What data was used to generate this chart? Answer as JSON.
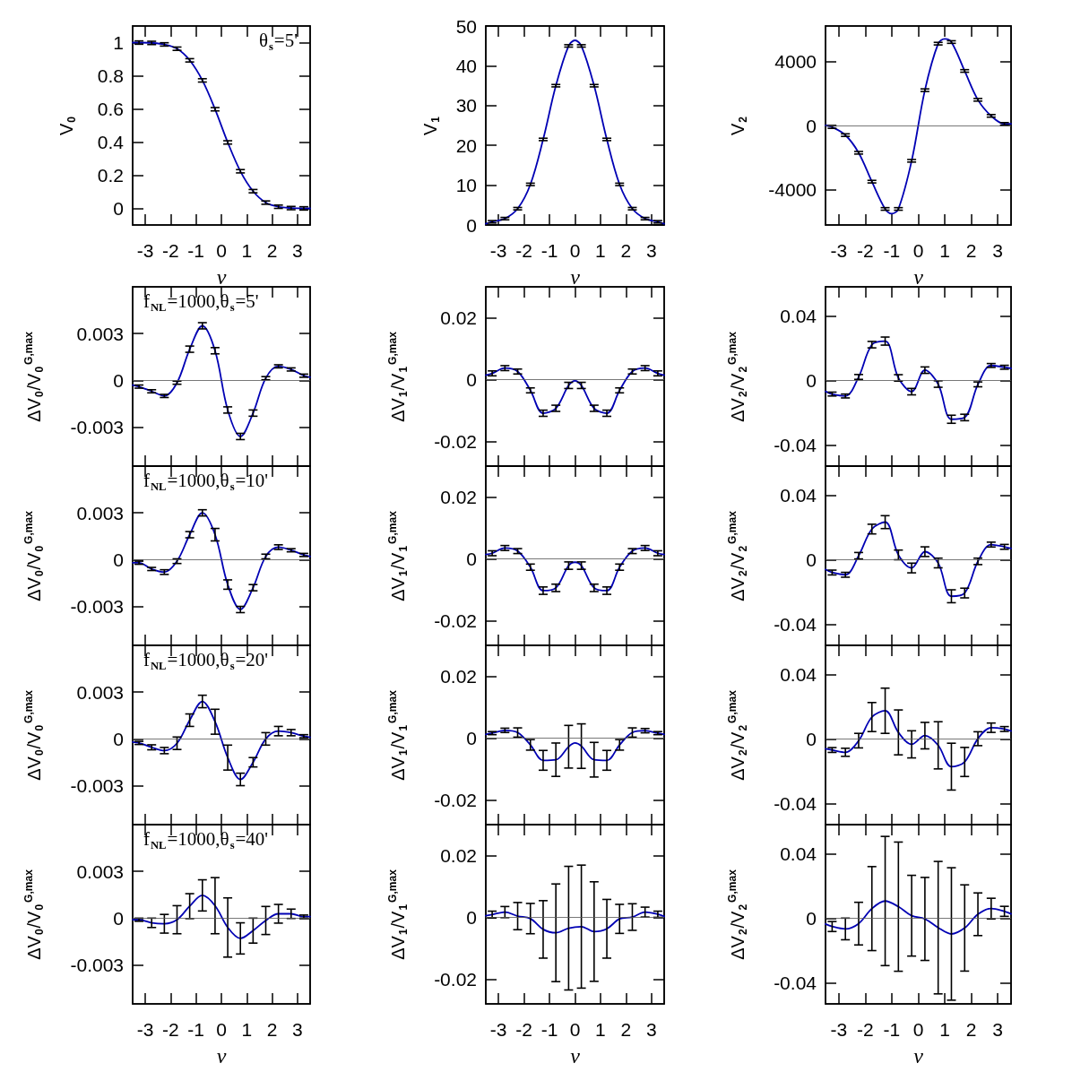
{
  "chart_data": [
    {
      "type": "line",
      "xlabel": "ν",
      "ylabel": "V$_{0}$",
      "annotations": [
        "θ$_{s}$=5'"
      ],
      "xlim": [
        -3.5,
        3.5
      ],
      "xticks": [
        -3,
        -2,
        -1,
        0,
        1,
        2,
        3
      ],
      "ylim": [
        -0.1,
        1.1
      ],
      "yticks": [
        0,
        0.2,
        0.4,
        0.6,
        0.8,
        1
      ],
      "marker": "none",
      "series": [
        {
          "color": "#0000b4",
          "x": [
            -3.5,
            -3.25,
            -2.75,
            -2.25,
            -1.75,
            -1.25,
            -0.75,
            -0.25,
            0.25,
            0.75,
            1.25,
            1.75,
            2.25,
            2.75,
            3.25,
            3.5
          ],
          "values": [
            1,
            1,
            0.998,
            0.989,
            0.963,
            0.893,
            0.772,
            0.598,
            0.398,
            0.224,
            0.104,
            0.035,
            0.01,
            0.002,
            0,
            0
          ],
          "errors": [
            null,
            0.01,
            0.01,
            0.01,
            0.01,
            0.01,
            0.01,
            0.01,
            0.01,
            0.01,
            0.01,
            0.01,
            0.01,
            0.01,
            0.01,
            null
          ]
        }
      ]
    },
    {
      "type": "line",
      "xlabel": "ν",
      "ylabel": "V$_{1}$",
      "xlim": [
        -3.5,
        3.5
      ],
      "xticks": [
        -3,
        -2,
        -1,
        0,
        1,
        2,
        3
      ],
      "ylim": [
        0,
        50
      ],
      "yticks": [
        0,
        10,
        20,
        30,
        40,
        50
      ],
      "marker": "none",
      "series": [
        {
          "color": "#0000b4",
          "x": [
            -3.5,
            -3.25,
            -2.75,
            -2.25,
            -1.75,
            -1.25,
            -0.75,
            -0.25,
            0,
            0.25,
            0.75,
            1.25,
            1.75,
            2.25,
            2.75,
            3.25,
            3.5
          ],
          "values": [
            0.3,
            0.8,
            1.6,
            4.1,
            10.2,
            21.5,
            35,
            45,
            46.4,
            45,
            35,
            21.5,
            10.2,
            4.1,
            1.6,
            0.8,
            0.3
          ],
          "errors": [
            null,
            0.3,
            0.3,
            0.3,
            0.3,
            0.3,
            0.3,
            0.3,
            null,
            0.3,
            0.3,
            0.3,
            0.3,
            0.3,
            0.3,
            0.3,
            null
          ]
        }
      ]
    },
    {
      "type": "line",
      "xlabel": "ν",
      "ylabel": "V$_{2}$",
      "xlim": [
        -3.5,
        3.5
      ],
      "xticks": [
        -3,
        -2,
        -1,
        0,
        1,
        2,
        3
      ],
      "ylim": [
        -6200,
        6200
      ],
      "yticks": [
        -4000,
        0,
        4000
      ],
      "marker": "none",
      "ref_lines": [
        {
          "axis": "y",
          "value": 0
        }
      ],
      "series": [
        {
          "color": "#0000b4",
          "x": [
            -3.5,
            -3.25,
            -2.75,
            -2.25,
            -1.75,
            -1.25,
            -1,
            -0.75,
            -0.25,
            0.25,
            0.75,
            1,
            1.25,
            1.75,
            2.25,
            2.75,
            3.25,
            3.5
          ],
          "values": [
            0,
            -100,
            -600,
            -1700,
            -3500,
            -5200,
            -5500,
            -5200,
            -2200,
            2200,
            5100,
            5400,
            5200,
            3400,
            1600,
            600,
            100,
            100
          ],
          "errors": [
            null,
            80,
            80,
            80,
            80,
            80,
            null,
            80,
            80,
            80,
            80,
            null,
            80,
            80,
            80,
            80,
            80,
            null
          ]
        }
      ]
    },
    {
      "type": "line",
      "ylabel": "ΔV$_{0}$/V$_{0}$$^{G,max}$",
      "annotations": [
        "f$_{NL}$=1000,θ$_{s}$=5'"
      ],
      "xlim": [
        -3.5,
        3.5
      ],
      "xticks": [
        -3,
        -2,
        -1,
        0,
        1,
        2,
        3
      ],
      "ylim": [
        -0.0055,
        0.006
      ],
      "yticks": [
        -0.003,
        0,
        0.003
      ],
      "tick_labels": "y",
      "marker": "none",
      "ref_lines": [
        {
          "axis": "y",
          "value": 0
        }
      ],
      "series": [
        {
          "color": "#0000b4",
          "x": [
            -3.5,
            -3.25,
            -2.75,
            -2.25,
            -1.75,
            -1.25,
            -0.75,
            -0.25,
            0.25,
            0.75,
            1.25,
            1.75,
            2.25,
            2.75,
            3.25,
            3.5
          ],
          "values": [
            -0.0003,
            -0.0004,
            -0.0007,
            -0.001,
            -0.00015,
            0.002,
            0.0035,
            0.0019,
            -0.0019,
            -0.0036,
            -0.0021,
            0.00014,
            0.0009,
            0.0007,
            0.0003,
            0.0002
          ],
          "errors": [
            null,
            0.0001,
            0.0001,
            0.0001,
            0.0001,
            0.0002,
            0.0002,
            0.0002,
            0.0002,
            0.0002,
            0.0002,
            0.0001,
            0.0001,
            0.0001,
            0.0001,
            null
          ]
        }
      ]
    },
    {
      "type": "line",
      "ylabel": "ΔV$_{1}$/V$_{1}$$^{G,max}$",
      "xlim": [
        -3.5,
        3.5
      ],
      "xticks": [
        -3,
        -2,
        -1,
        0,
        1,
        2,
        3
      ],
      "ylim": [
        -0.028,
        0.03
      ],
      "yticks": [
        -0.02,
        0,
        0.02
      ],
      "tick_labels": "y",
      "marker": "none",
      "ref_lines": [
        {
          "axis": "y",
          "value": 0
        }
      ],
      "series": [
        {
          "color": "#0000b4",
          "x": [
            -3.5,
            -3.25,
            -2.75,
            -2.25,
            -1.75,
            -1.25,
            -0.75,
            -0.25,
            0,
            0.25,
            0.75,
            1.25,
            1.75,
            2.25,
            2.75,
            3.25,
            3.5
          ],
          "values": [
            0.0014,
            0.002,
            0.0037,
            0.0026,
            -0.0035,
            -0.0109,
            -0.0093,
            -0.0019,
            -0.0004,
            -0.0019,
            -0.0093,
            -0.0109,
            -0.0035,
            0.0026,
            0.0037,
            0.002,
            0.0014
          ],
          "errors": [
            null,
            0.0008,
            0.0008,
            0.0008,
            0.0008,
            0.001,
            0.001,
            0.001,
            null,
            0.001,
            0.001,
            0.001,
            0.0008,
            0.0008,
            0.0008,
            0.0008,
            null
          ]
        }
      ]
    },
    {
      "type": "line",
      "ylabel": "ΔV$_{2}$/V$_{2}$$^{G,max}$",
      "xlim": [
        -3.5,
        3.5
      ],
      "xticks": [
        -3,
        -2,
        -1,
        0,
        1,
        2,
        3
      ],
      "ylim": [
        -0.053,
        0.058
      ],
      "yticks": [
        -0.04,
        0,
        0.04
      ],
      "tick_labels": "y",
      "marker": "none",
      "ref_lines": [
        {
          "axis": "y",
          "value": 0
        }
      ],
      "series": [
        {
          "color": "#0000b4",
          "x": [
            -3.5,
            -3.25,
            -2.75,
            -2.25,
            -1.75,
            -1.25,
            -0.75,
            -0.25,
            0.25,
            0.75,
            1.25,
            1.75,
            2.25,
            2.75,
            3.25,
            3.5
          ],
          "values": [
            -0.0067,
            -0.0084,
            -0.0096,
            0.0022,
            0.0222,
            0.0244,
            0.0016,
            -0.0069,
            0.0064,
            -0.0022,
            -0.024,
            -0.0229,
            -0.0024,
            0.0093,
            0.0082,
            0.0075
          ],
          "errors": [
            null,
            0.0012,
            0.0012,
            0.0015,
            0.002,
            0.0025,
            0.002,
            0.002,
            0.002,
            0.002,
            0.0025,
            0.002,
            0.0015,
            0.0012,
            0.0012,
            null
          ]
        }
      ]
    },
    {
      "type": "line",
      "ylabel": "ΔV$_{0}$/V$_{0}$$^{G,max}$",
      "annotations": [
        "f$_{NL}$=1000,θ$_{s}$=10'"
      ],
      "xlim": [
        -3.5,
        3.5
      ],
      "xticks": [
        -3,
        -2,
        -1,
        0,
        1,
        2,
        3
      ],
      "ylim": [
        -0.0055,
        0.006
      ],
      "yticks": [
        -0.003,
        0,
        0.003
      ],
      "tick_labels": "y",
      "marker": "none",
      "ref_lines": [
        {
          "axis": "y",
          "value": 0
        }
      ],
      "series": [
        {
          "color": "#0000b4",
          "x": [
            -3.5,
            -3.25,
            -2.75,
            -2.25,
            -1.75,
            -1.25,
            -0.75,
            -0.25,
            0.25,
            0.75,
            1.25,
            1.75,
            2.25,
            2.75,
            3.25,
            3.5
          ],
          "values": [
            -0.0002,
            -0.0002,
            -0.0006,
            -0.0008,
            -0.0001,
            0.0016,
            0.003,
            0.0016,
            -0.0016,
            -0.0032,
            -0.0018,
            0.0002,
            0.0008,
            0.0006,
            0.0003,
            0.0002
          ],
          "errors": [
            null,
            0.0001,
            0.0001,
            0.00015,
            0.00015,
            0.0002,
            0.0002,
            0.0004,
            0.0003,
            0.0002,
            0.0002,
            0.00015,
            0.00015,
            0.0001,
            0.0001,
            null
          ]
        }
      ]
    },
    {
      "type": "line",
      "ylabel": "ΔV$_{1}$/V$_{1}$$^{G,max}$",
      "xlim": [
        -3.5,
        3.5
      ],
      "xticks": [
        -3,
        -2,
        -1,
        0,
        1,
        2,
        3
      ],
      "ylim": [
        -0.028,
        0.03
      ],
      "yticks": [
        -0.02,
        0,
        0.02
      ],
      "tick_labels": "y",
      "marker": "none",
      "ref_lines": [
        {
          "axis": "y",
          "value": 0
        }
      ],
      "series": [
        {
          "color": "#0000b4",
          "x": [
            -3.5,
            -3.25,
            -2.75,
            -2.25,
            -1.75,
            -1.25,
            -0.75,
            -0.25,
            0,
            0.25,
            0.75,
            1.25,
            1.75,
            2.25,
            2.75,
            3.25,
            3.5
          ],
          "values": [
            0.0014,
            0.0018,
            0.0035,
            0.0025,
            -0.0027,
            -0.0103,
            -0.0094,
            -0.0022,
            -0.0011,
            -0.0022,
            -0.0094,
            -0.0103,
            -0.0027,
            0.0025,
            0.0035,
            0.0018,
            0.0014
          ],
          "errors": [
            null,
            0.0008,
            0.0008,
            0.0008,
            0.001,
            0.0012,
            0.0012,
            0.0012,
            null,
            0.0012,
            0.0012,
            0.0012,
            0.001,
            0.0008,
            0.0008,
            0.0008,
            null
          ]
        }
      ]
    },
    {
      "type": "line",
      "ylabel": "ΔV$_{2}$/V$_{2}$$^{G,max}$",
      "xlim": [
        -3.5,
        3.5
      ],
      "xticks": [
        -3,
        -2,
        -1,
        0,
        1,
        2,
        3
      ],
      "ylim": [
        -0.053,
        0.058
      ],
      "yticks": [
        -0.04,
        0,
        0.04
      ],
      "tick_labels": "y",
      "marker": "none",
      "ref_lines": [
        {
          "axis": "y",
          "value": 0
        }
      ],
      "series": [
        {
          "color": "#0000b4",
          "x": [
            -3.5,
            -3.25,
            -2.75,
            -2.25,
            -1.75,
            -1.25,
            -0.75,
            -0.25,
            0.25,
            0.75,
            1.25,
            1.75,
            2.25,
            2.75,
            3.25,
            3.5
          ],
          "values": [
            -0.006,
            -0.0079,
            -0.0093,
            0.0025,
            0.019,
            0.0233,
            0.003,
            -0.0051,
            0.005,
            -0.002,
            -0.0226,
            -0.0206,
            -0.001,
            0.0094,
            0.008,
            0.007
          ],
          "errors": [
            null,
            0.0015,
            0.0015,
            0.002,
            0.003,
            0.004,
            0.003,
            0.003,
            0.003,
            0.003,
            0.004,
            0.003,
            0.002,
            0.0015,
            0.0015,
            null
          ]
        }
      ]
    },
    {
      "type": "line",
      "ylabel": "ΔV$_{0}$/V$_{0}$$^{G,max}$",
      "annotations": [
        "f$_{NL}$=1000,θ$_{s}$=20'"
      ],
      "xlim": [
        -3.5,
        3.5
      ],
      "xticks": [
        -3,
        -2,
        -1,
        0,
        1,
        2,
        3
      ],
      "ylim": [
        -0.0055,
        0.006
      ],
      "yticks": [
        -0.003,
        0,
        0.003
      ],
      "tick_labels": "y",
      "marker": "none",
      "ref_lines": [
        {
          "axis": "y",
          "value": 0
        }
      ],
      "series": [
        {
          "color": "#0000b4",
          "x": [
            -3.5,
            -3.25,
            -2.75,
            -2.25,
            -1.75,
            -1.25,
            -0.75,
            -0.25,
            0.25,
            0.75,
            1.25,
            1.75,
            2.25,
            2.75,
            3.25,
            3.5
          ],
          "values": [
            -0.0002,
            -0.00026,
            -0.00054,
            -0.00075,
            -0.00028,
            0.0012,
            0.0024,
            0.0011,
            -0.0012,
            -0.0026,
            -0.0015,
            0,
            0.0005,
            0.0004,
            0.00017,
            0.0001
          ],
          "errors": [
            null,
            0.0001,
            0.00016,
            0.0002,
            0.0004,
            0.0004,
            0.0004,
            0.0008,
            0.0008,
            0.0004,
            0.0003,
            0.0004,
            0.0003,
            0.0002,
            0.0001,
            null
          ]
        }
      ]
    },
    {
      "type": "line",
      "ylabel": "ΔV$_{1}$/V$_{1}$$^{G,max}$",
      "xlim": [
        -3.5,
        3.5
      ],
      "xticks": [
        -3,
        -2,
        -1,
        0,
        1,
        2,
        3
      ],
      "ylim": [
        -0.028,
        0.03
      ],
      "yticks": [
        -0.02,
        0,
        0.02
      ],
      "tick_labels": "y",
      "marker": "none",
      "ref_lines": [
        {
          "axis": "y",
          "value": 0
        }
      ],
      "series": [
        {
          "color": "#0000b4",
          "x": [
            -3.5,
            -3.25,
            -2.75,
            -2.25,
            -1.75,
            -1.25,
            -0.75,
            -0.25,
            0,
            0.25,
            0.75,
            1.25,
            1.75,
            2.25,
            2.75,
            3.25,
            3.5
          ],
          "values": [
            0.0012,
            0.0016,
            0.0025,
            0.0018,
            -0.0022,
            -0.0072,
            -0.007,
            -0.0028,
            -0.0016,
            -0.0026,
            -0.007,
            -0.0072,
            -0.0022,
            0.0018,
            0.0024,
            0.0016,
            0.0012
          ],
          "errors": [
            null,
            0.0005,
            0.0007,
            0.0015,
            0.0017,
            0.0032,
            0.0054,
            0.0069,
            null,
            0.0072,
            0.0056,
            0.0032,
            0.0017,
            0.0015,
            0.0007,
            0.0005,
            null
          ]
        }
      ]
    },
    {
      "type": "line",
      "ylabel": "ΔV$_{2}$/V$_{2}$$^{G,max}$",
      "xlim": [
        -3.5,
        3.5
      ],
      "xticks": [
        -3,
        -2,
        -1,
        0,
        1,
        2,
        3
      ],
      "ylim": [
        -0.053,
        0.058
      ],
      "yticks": [
        -0.04,
        0,
        0.04
      ],
      "tick_labels": "y",
      "marker": "none",
      "ref_lines": [
        {
          "axis": "y",
          "value": 0
        }
      ],
      "series": [
        {
          "color": "#0000b4",
          "x": [
            -3.5,
            -3.25,
            -2.75,
            -2.25,
            -1.75,
            -1.25,
            -0.75,
            -0.25,
            0.25,
            0.75,
            1.25,
            1.75,
            2.25,
            2.75,
            3.25,
            3.5
          ],
          "values": [
            -0.006,
            -0.0068,
            -0.0082,
            -0.001,
            0.0136,
            0.0175,
            0.0041,
            -0.0033,
            0.0021,
            -0.0039,
            -0.0171,
            -0.0142,
            0.0002,
            0.007,
            0.0062,
            0.005
          ],
          "errors": [
            null,
            0.0015,
            0.0025,
            0.0045,
            0.009,
            0.014,
            0.0139,
            0.0084,
            0.0082,
            0.0146,
            0.0145,
            0.009,
            0.0043,
            0.0029,
            0.0015,
            null
          ]
        }
      ]
    },
    {
      "type": "line",
      "xlabel": "ν",
      "ylabel": "ΔV$_{0}$/V$_{0}$$^{G,max}$",
      "annotations": [
        "f$_{NL}$=1000,θ$_{s}$=40'"
      ],
      "xlim": [
        -3.5,
        3.5
      ],
      "xticks": [
        -3,
        -2,
        -1,
        0,
        1,
        2,
        3
      ],
      "ylim": [
        -0.0055,
        0.006
      ],
      "yticks": [
        -0.003,
        0,
        0.003
      ],
      "marker": "none",
      "ref_lines": [
        {
          "axis": "y",
          "value": 0
        }
      ],
      "series": [
        {
          "color": "#0000b4",
          "x": [
            -3.5,
            -3.25,
            -2.75,
            -2.25,
            -1.75,
            -1.25,
            -0.75,
            -0.25,
            0.25,
            0.75,
            1.25,
            1.75,
            2.25,
            2.75,
            3.25,
            3.5
          ],
          "values": [
            -0.0001,
            -0.0001,
            -0.0003,
            -0.00036,
            -0.0001,
            0.00077,
            0.00146,
            0.0008,
            -0.0006,
            -0.0013,
            -0.0008,
            -0.00015,
            0.00028,
            0.00028,
            0.0001,
            0.0001
          ],
          "errors": [
            null,
            0.0001,
            0.0003,
            0.0006,
            0.0009,
            0.0008,
            0.001,
            0.0018,
            0.0019,
            0.001,
            0.0008,
            0.0009,
            0.0006,
            0.0003,
            0.0001,
            null
          ]
        }
      ]
    },
    {
      "type": "line",
      "xlabel": "ν",
      "ylabel": "ΔV$_{1}$/V$_{1}$$^{G,max}$",
      "xlim": [
        -3.5,
        3.5
      ],
      "xticks": [
        -3,
        -2,
        -1,
        0,
        1,
        2,
        3
      ],
      "ylim": [
        -0.028,
        0.03
      ],
      "yticks": [
        -0.02,
        0,
        0.02
      ],
      "marker": "none",
      "ref_lines": [
        {
          "axis": "y",
          "value": 0
        }
      ],
      "series": [
        {
          "color": "#0000b4",
          "x": [
            -3.5,
            -3.25,
            -2.75,
            -2.25,
            -1.75,
            -1.25,
            -0.75,
            -0.25,
            0.25,
            0.75,
            1.25,
            1.75,
            2.25,
            2.75,
            3.25,
            3.5
          ],
          "values": [
            0.0005,
            0.0009,
            0.0017,
            0.0004,
            -0.0004,
            -0.0039,
            -0.005,
            -0.0035,
            -0.003,
            -0.0046,
            -0.0037,
            -0.0005,
            0.0001,
            0.0017,
            0.001,
            0.0003
          ],
          "errors": [
            null,
            0.0011,
            0.0018,
            0.0044,
            0.0049,
            0.0093,
            0.0158,
            0.02,
            0.0199,
            0.0161,
            0.0095,
            0.0047,
            0.0043,
            0.0016,
            0.001,
            null
          ]
        }
      ]
    },
    {
      "type": "line",
      "xlabel": "ν",
      "ylabel": "ΔV$_{2}$/V$_{2}$$^{G,max}$",
      "xlim": [
        -3.5,
        3.5
      ],
      "xticks": [
        -3,
        -2,
        -1,
        0,
        1,
        2,
        3
      ],
      "ylim": [
        -0.053,
        0.058
      ],
      "yticks": [
        -0.04,
        0,
        0.04
      ],
      "marker": "none",
      "ref_lines": [
        {
          "axis": "y",
          "value": 0
        }
      ],
      "series": [
        {
          "color": "#0000b4",
          "x": [
            -3.5,
            -3.25,
            -2.75,
            -2.25,
            -1.75,
            -1.25,
            -0.75,
            -0.25,
            0.25,
            0.75,
            1.25,
            1.75,
            2.25,
            2.75,
            3.25,
            3.5
          ],
          "values": [
            -0.0035,
            -0.0051,
            -0.0066,
            -0.0033,
            0.006,
            0.0107,
            0.0072,
            0.0016,
            -0.0004,
            -0.0058,
            -0.0097,
            -0.006,
            0.0025,
            0.006,
            0.0043,
            0.0027
          ],
          "errors": [
            null,
            0.0031,
            0.0067,
            0.0132,
            0.026,
            0.04,
            0.04,
            0.025,
            0.0257,
            0.041,
            0.041,
            0.0267,
            0.0132,
            0.0064,
            0.0031,
            null
          ]
        }
      ]
    }
  ]
}
